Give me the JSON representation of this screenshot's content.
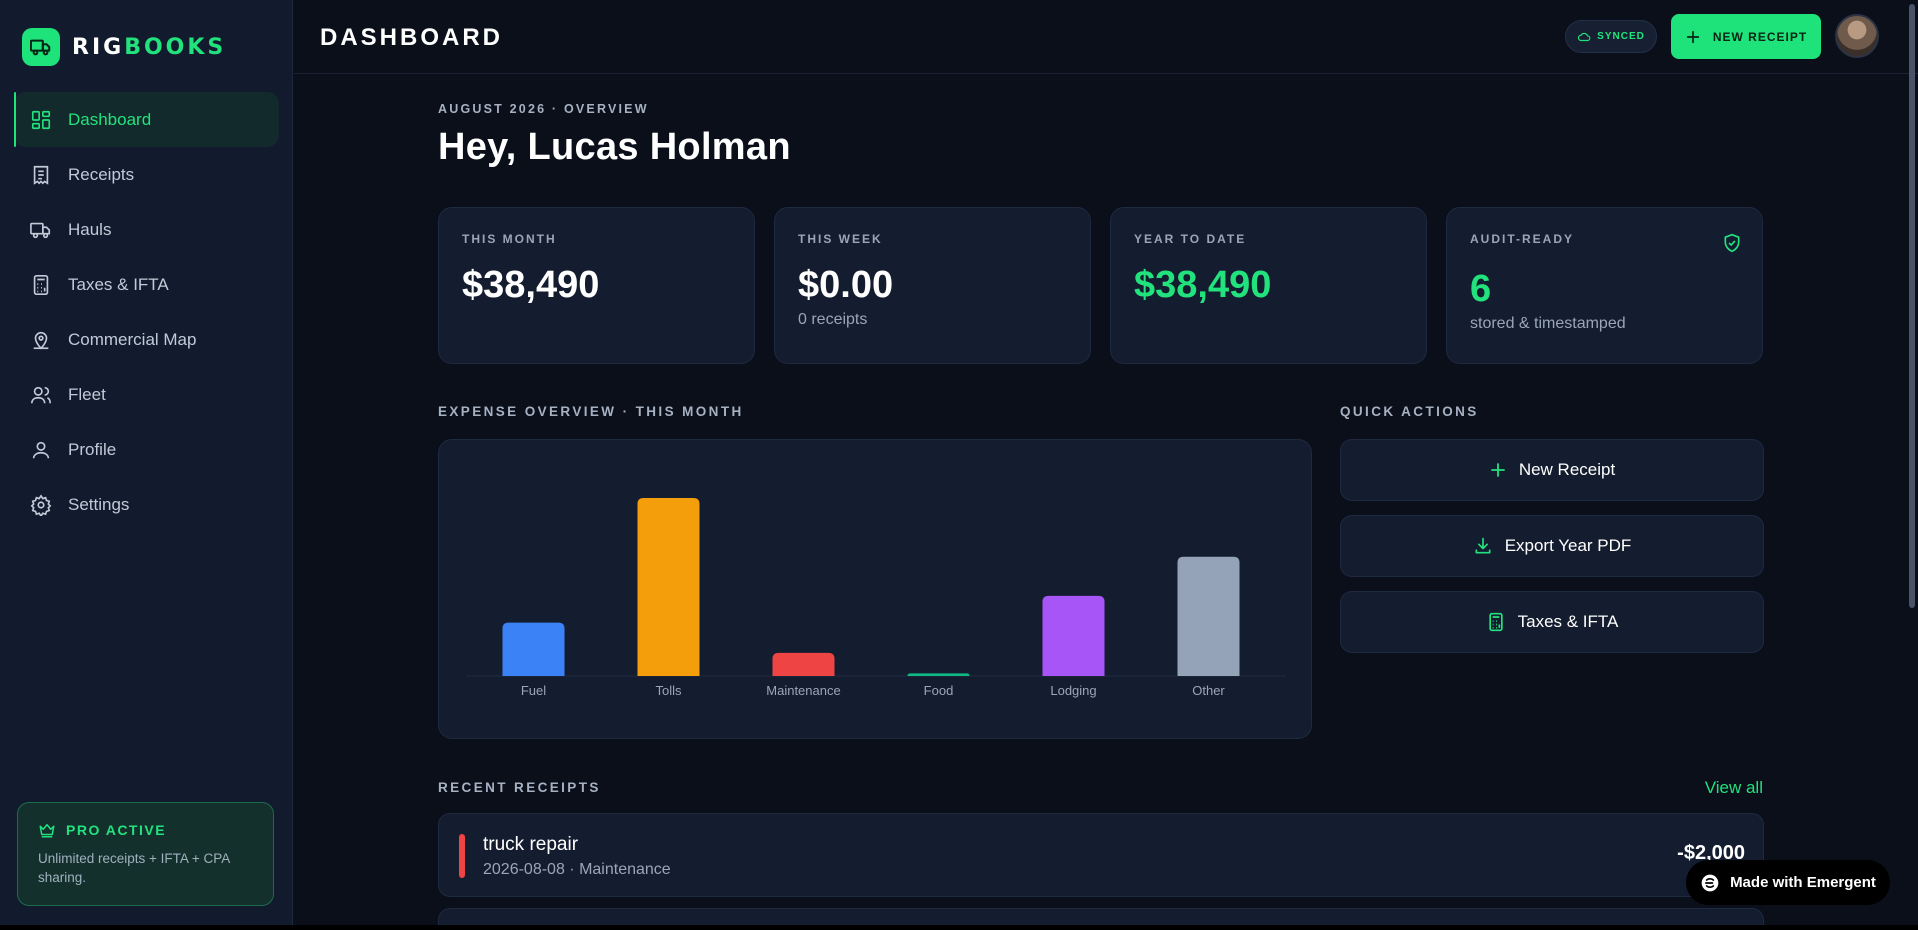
{
  "brand": {
    "part1": "RIG",
    "part2": "BOOKS"
  },
  "sidebar": {
    "items": [
      {
        "label": "Dashboard",
        "icon": "dashboard-icon",
        "active": true
      },
      {
        "label": "Receipts",
        "icon": "receipt-icon"
      },
      {
        "label": "Hauls",
        "icon": "truck-icon"
      },
      {
        "label": "Taxes & IFTA",
        "icon": "calculator-icon"
      },
      {
        "label": "Commercial Map",
        "icon": "map-pin-icon"
      },
      {
        "label": "Fleet",
        "icon": "users-icon"
      },
      {
        "label": "Profile",
        "icon": "user-icon"
      },
      {
        "label": "Settings",
        "icon": "gear-icon"
      }
    ],
    "pro": {
      "title": "PRO ACTIVE",
      "desc": "Unlimited receipts + IFTA + CPA sharing."
    }
  },
  "header": {
    "title": "DASHBOARD",
    "synced": "SYNCED",
    "new_receipt": "NEW RECEIPT"
  },
  "main": {
    "eyebrow": "AUGUST 2026 · OVERVIEW",
    "greeting": "Hey, Lucas Holman",
    "stats": [
      {
        "label": "THIS MONTH",
        "value": "$38,490",
        "sub": ""
      },
      {
        "label": "THIS WEEK",
        "value": "$0.00",
        "sub": "0 receipts"
      },
      {
        "label": "YEAR TO DATE",
        "value": "$38,490",
        "sub": ""
      },
      {
        "label": "AUDIT-READY",
        "value": "6",
        "sub": "stored & timestamped"
      }
    ],
    "expense_label": "EXPENSE OVERVIEW · THIS MONTH",
    "quick_label": "QUICK ACTIONS",
    "quick_actions": [
      {
        "label": "New Receipt",
        "icon": "plus-icon"
      },
      {
        "label": "Export Year PDF",
        "icon": "download-icon"
      },
      {
        "label": "Taxes & IFTA",
        "icon": "calculator-icon"
      }
    ],
    "recent_label": "RECENT RECEIPTS",
    "view_all": "View all",
    "receipts": [
      {
        "title": "truck repair",
        "meta": "2026-08-08 · Maintenance",
        "amount": "-$2,000"
      }
    ]
  },
  "chart_data": {
    "type": "bar",
    "categories": [
      "Fuel",
      "Tolls",
      "Maintenance",
      "Food",
      "Lodging",
      "Other"
    ],
    "values": [
      30,
      100,
      13,
      1.5,
      45,
      67
    ],
    "colors": [
      "#3b82f6",
      "#f59e0b",
      "#ef4444",
      "#10b981",
      "#a855f7",
      "#94a3b8"
    ],
    "ylim": [
      0,
      100
    ],
    "grid": false
  },
  "footer_badge": "Made with Emergent"
}
